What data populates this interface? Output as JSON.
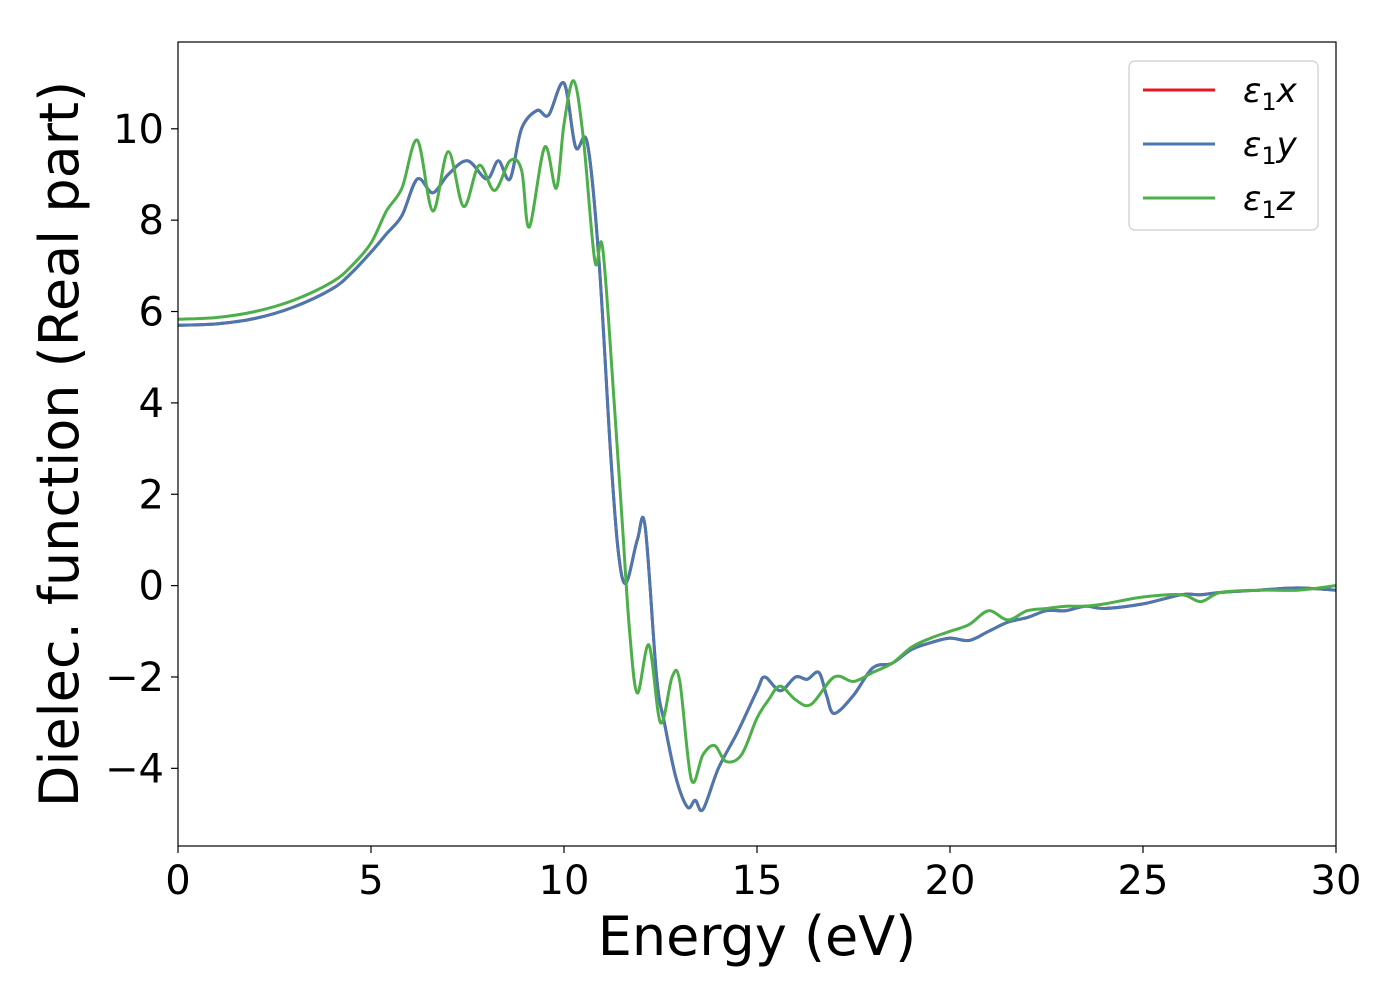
{
  "chart_data": {
    "type": "line",
    "title": "",
    "xlabel": "Energy (eV)",
    "ylabel": "Dielec. function (Real part)",
    "xlim": [
      0,
      30
    ],
    "ylim": [
      -5.7,
      11.9
    ],
    "xticks": [
      0,
      5,
      10,
      15,
      20,
      25,
      30
    ],
    "yticks": [
      -4,
      -2,
      0,
      2,
      4,
      6,
      8,
      10
    ],
    "ytick_labels": [
      "−4",
      "−2",
      "0",
      "2",
      "4",
      "6",
      "8",
      "10"
    ],
    "xtick_labels": [
      "0",
      "5",
      "10",
      "15",
      "20",
      "25",
      "30"
    ],
    "grid": false,
    "legend_position": "top-right",
    "series": [
      {
        "name": "ε1x",
        "legend_main": "ε",
        "legend_sub": "1",
        "legend_var": "x",
        "color": "#e41a1c",
        "points": [
          [
            0,
            5.7
          ],
          [
            1,
            5.73
          ],
          [
            2,
            5.85
          ],
          [
            3,
            6.1
          ],
          [
            4,
            6.5
          ],
          [
            4.5,
            6.85
          ],
          [
            5,
            7.3
          ],
          [
            5.4,
            7.7
          ],
          [
            5.8,
            8.1
          ],
          [
            6.2,
            8.9
          ],
          [
            6.6,
            8.6
          ],
          [
            7.0,
            9.0
          ],
          [
            7.5,
            9.3
          ],
          [
            8.0,
            8.9
          ],
          [
            8.3,
            9.3
          ],
          [
            8.6,
            8.9
          ],
          [
            8.9,
            10.0
          ],
          [
            9.3,
            10.4
          ],
          [
            9.6,
            10.3
          ],
          [
            10.0,
            11.0
          ],
          [
            10.3,
            9.6
          ],
          [
            10.6,
            9.7
          ],
          [
            10.9,
            7.2
          ],
          [
            11.2,
            3.0
          ],
          [
            11.4,
            0.8
          ],
          [
            11.6,
            0.05
          ],
          [
            11.9,
            1.0
          ],
          [
            12.1,
            1.3
          ],
          [
            12.4,
            -2.0
          ],
          [
            12.6,
            -3.0
          ],
          [
            12.9,
            -4.2
          ],
          [
            13.2,
            -4.85
          ],
          [
            13.4,
            -4.7
          ],
          [
            13.6,
            -4.9
          ],
          [
            14.0,
            -4.0
          ],
          [
            14.5,
            -3.2
          ],
          [
            15.0,
            -2.3
          ],
          [
            15.2,
            -2.0
          ],
          [
            15.6,
            -2.3
          ],
          [
            16.0,
            -2.0
          ],
          [
            16.3,
            -2.05
          ],
          [
            16.6,
            -1.9
          ],
          [
            16.8,
            -2.4
          ],
          [
            17.0,
            -2.8
          ],
          [
            17.5,
            -2.4
          ],
          [
            18.0,
            -1.8
          ],
          [
            18.5,
            -1.7
          ],
          [
            19.0,
            -1.4
          ],
          [
            19.5,
            -1.25
          ],
          [
            20.0,
            -1.15
          ],
          [
            20.5,
            -1.2
          ],
          [
            21.0,
            -1.0
          ],
          [
            21.5,
            -0.8
          ],
          [
            22.0,
            -0.7
          ],
          [
            22.5,
            -0.55
          ],
          [
            23.0,
            -0.55
          ],
          [
            23.5,
            -0.45
          ],
          [
            24.0,
            -0.5
          ],
          [
            25.0,
            -0.4
          ],
          [
            26.0,
            -0.2
          ],
          [
            26.5,
            -0.2
          ],
          [
            27.0,
            -0.15
          ],
          [
            28.0,
            -0.1
          ],
          [
            29.0,
            -0.05
          ],
          [
            30.0,
            -0.1
          ]
        ]
      },
      {
        "name": "ε1y",
        "legend_main": "ε",
        "legend_sub": "1",
        "legend_var": "y",
        "color": "#4a78b0",
        "points": [
          [
            0,
            5.7
          ],
          [
            1,
            5.73
          ],
          [
            2,
            5.85
          ],
          [
            3,
            6.1
          ],
          [
            4,
            6.5
          ],
          [
            4.5,
            6.85
          ],
          [
            5,
            7.3
          ],
          [
            5.4,
            7.7
          ],
          [
            5.8,
            8.1
          ],
          [
            6.2,
            8.9
          ],
          [
            6.6,
            8.6
          ],
          [
            7.0,
            9.0
          ],
          [
            7.5,
            9.3
          ],
          [
            8.0,
            8.9
          ],
          [
            8.3,
            9.3
          ],
          [
            8.6,
            8.9
          ],
          [
            8.9,
            10.0
          ],
          [
            9.3,
            10.4
          ],
          [
            9.6,
            10.3
          ],
          [
            10.0,
            11.0
          ],
          [
            10.3,
            9.6
          ],
          [
            10.6,
            9.7
          ],
          [
            10.9,
            7.2
          ],
          [
            11.2,
            3.0
          ],
          [
            11.4,
            0.8
          ],
          [
            11.6,
            0.05
          ],
          [
            11.9,
            1.0
          ],
          [
            12.1,
            1.3
          ],
          [
            12.4,
            -2.0
          ],
          [
            12.6,
            -3.0
          ],
          [
            12.9,
            -4.2
          ],
          [
            13.2,
            -4.85
          ],
          [
            13.4,
            -4.7
          ],
          [
            13.6,
            -4.9
          ],
          [
            14.0,
            -4.0
          ],
          [
            14.5,
            -3.2
          ],
          [
            15.0,
            -2.3
          ],
          [
            15.2,
            -2.0
          ],
          [
            15.6,
            -2.3
          ],
          [
            16.0,
            -2.0
          ],
          [
            16.3,
            -2.05
          ],
          [
            16.6,
            -1.9
          ],
          [
            16.8,
            -2.4
          ],
          [
            17.0,
            -2.8
          ],
          [
            17.5,
            -2.4
          ],
          [
            18.0,
            -1.8
          ],
          [
            18.5,
            -1.7
          ],
          [
            19.0,
            -1.4
          ],
          [
            19.5,
            -1.25
          ],
          [
            20.0,
            -1.15
          ],
          [
            20.5,
            -1.2
          ],
          [
            21.0,
            -1.0
          ],
          [
            21.5,
            -0.8
          ],
          [
            22.0,
            -0.7
          ],
          [
            22.5,
            -0.55
          ],
          [
            23.0,
            -0.55
          ],
          [
            23.5,
            -0.45
          ],
          [
            24.0,
            -0.5
          ],
          [
            25.0,
            -0.4
          ],
          [
            26.0,
            -0.2
          ],
          [
            26.5,
            -0.2
          ],
          [
            27.0,
            -0.15
          ],
          [
            28.0,
            -0.1
          ],
          [
            29.0,
            -0.05
          ],
          [
            30.0,
            -0.1
          ]
        ]
      },
      {
        "name": "ε1z",
        "legend_main": "ε",
        "legend_sub": "1",
        "legend_var": "z",
        "color": "#4daf4a",
        "points": [
          [
            0,
            5.83
          ],
          [
            1,
            5.87
          ],
          [
            2,
            6.0
          ],
          [
            3,
            6.25
          ],
          [
            4,
            6.65
          ],
          [
            4.5,
            7.0
          ],
          [
            5,
            7.5
          ],
          [
            5.4,
            8.2
          ],
          [
            5.8,
            8.7
          ],
          [
            6.2,
            9.75
          ],
          [
            6.6,
            8.2
          ],
          [
            7.0,
            9.5
          ],
          [
            7.4,
            8.3
          ],
          [
            7.8,
            9.2
          ],
          [
            8.2,
            8.65
          ],
          [
            8.6,
            9.3
          ],
          [
            8.9,
            9.1
          ],
          [
            9.1,
            7.85
          ],
          [
            9.5,
            9.6
          ],
          [
            9.8,
            8.7
          ],
          [
            10.0,
            10.1
          ],
          [
            10.25,
            11.05
          ],
          [
            10.5,
            9.8
          ],
          [
            10.8,
            7.1
          ],
          [
            11.0,
            7.4
          ],
          [
            11.3,
            4.0
          ],
          [
            11.5,
            1.5
          ],
          [
            11.7,
            -1.0
          ],
          [
            11.9,
            -2.35
          ],
          [
            12.2,
            -1.3
          ],
          [
            12.5,
            -3.0
          ],
          [
            12.8,
            -2.0
          ],
          [
            13.0,
            -2.1
          ],
          [
            13.3,
            -4.25
          ],
          [
            13.6,
            -3.7
          ],
          [
            13.9,
            -3.5
          ],
          [
            14.2,
            -3.85
          ],
          [
            14.6,
            -3.7
          ],
          [
            15.0,
            -2.9
          ],
          [
            15.3,
            -2.5
          ],
          [
            15.6,
            -2.2
          ],
          [
            16.0,
            -2.5
          ],
          [
            16.4,
            -2.6
          ],
          [
            17.0,
            -2.0
          ],
          [
            17.5,
            -2.1
          ],
          [
            18.0,
            -1.9
          ],
          [
            18.5,
            -1.7
          ],
          [
            19.0,
            -1.35
          ],
          [
            19.5,
            -1.15
          ],
          [
            20.0,
            -1.0
          ],
          [
            20.5,
            -0.85
          ],
          [
            21.0,
            -0.55
          ],
          [
            21.5,
            -0.75
          ],
          [
            22.0,
            -0.55
          ],
          [
            22.5,
            -0.5
          ],
          [
            23.0,
            -0.45
          ],
          [
            23.5,
            -0.45
          ],
          [
            24.0,
            -0.4
          ],
          [
            25.0,
            -0.25
          ],
          [
            26.0,
            -0.2
          ],
          [
            26.5,
            -0.35
          ],
          [
            27.0,
            -0.15
          ],
          [
            28.0,
            -0.1
          ],
          [
            29.0,
            -0.1
          ],
          [
            30.0,
            0.0
          ]
        ]
      }
    ]
  }
}
